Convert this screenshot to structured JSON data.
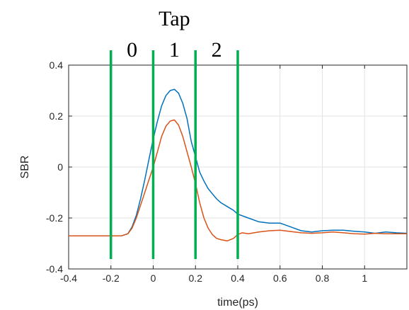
{
  "chart_data": {
    "type": "line",
    "xlabel": "time(ps)",
    "ylabel": "SBR",
    "xlim": [
      -0.4,
      1.2
    ],
    "ylim": [
      -0.4,
      0.4
    ],
    "xticks": [
      "-0.4",
      "-0.2",
      "0",
      "0.2",
      "0.4",
      "0.6",
      "0.8",
      "1"
    ],
    "xtick_values": [
      -0.4,
      -0.2,
      0,
      0.2,
      0.4,
      0.6,
      0.8,
      1.0
    ],
    "yticks": [
      "-0.4",
      "-0.2",
      "0",
      "0.2",
      "0.4"
    ],
    "ytick_values": [
      -0.4,
      -0.2,
      0,
      0.2,
      0.4
    ],
    "grid": true,
    "series": [
      {
        "color": "#0072BD",
        "x": [
          -0.4,
          -0.3,
          -0.2,
          -0.15,
          -0.12,
          -0.1,
          -0.08,
          -0.06,
          -0.04,
          -0.02,
          0.0,
          0.02,
          0.04,
          0.06,
          0.08,
          0.1,
          0.12,
          0.14,
          0.16,
          0.18,
          0.2,
          0.22,
          0.24,
          0.26,
          0.28,
          0.3,
          0.32,
          0.35,
          0.38,
          0.4,
          0.45,
          0.5,
          0.55,
          0.6,
          0.65,
          0.7,
          0.75,
          0.8,
          0.85,
          0.9,
          0.95,
          1.0,
          1.05,
          1.1,
          1.15,
          1.2
        ],
        "y": [
          -0.27,
          -0.27,
          -0.27,
          -0.27,
          -0.262,
          -0.235,
          -0.19,
          -0.125,
          -0.05,
          0.03,
          0.11,
          0.18,
          0.24,
          0.28,
          0.3,
          0.305,
          0.29,
          0.25,
          0.19,
          0.1,
          0.04,
          -0.02,
          -0.055,
          -0.085,
          -0.105,
          -0.125,
          -0.14,
          -0.155,
          -0.17,
          -0.185,
          -0.2,
          -0.215,
          -0.22,
          -0.22,
          -0.235,
          -0.25,
          -0.255,
          -0.25,
          -0.248,
          -0.248,
          -0.252,
          -0.255,
          -0.26,
          -0.255,
          -0.258,
          -0.26
        ]
      },
      {
        "color": "#D95319",
        "x": [
          -0.4,
          -0.3,
          -0.2,
          -0.15,
          -0.12,
          -0.1,
          -0.08,
          -0.06,
          -0.04,
          -0.02,
          0.0,
          0.02,
          0.04,
          0.06,
          0.08,
          0.1,
          0.12,
          0.14,
          0.16,
          0.18,
          0.2,
          0.22,
          0.24,
          0.26,
          0.28,
          0.3,
          0.32,
          0.35,
          0.38,
          0.4,
          0.42,
          0.45,
          0.5,
          0.55,
          0.6,
          0.65,
          0.7,
          0.75,
          0.8,
          0.85,
          0.9,
          0.95,
          1.0,
          1.05,
          1.1,
          1.15,
          1.2
        ],
        "y": [
          -0.27,
          -0.27,
          -0.27,
          -0.27,
          -0.262,
          -0.24,
          -0.2,
          -0.15,
          -0.1,
          -0.05,
          0.0,
          0.06,
          0.12,
          0.16,
          0.18,
          0.185,
          0.165,
          0.12,
          0.06,
          0.0,
          -0.065,
          -0.14,
          -0.2,
          -0.24,
          -0.265,
          -0.28,
          -0.285,
          -0.29,
          -0.28,
          -0.265,
          -0.258,
          -0.262,
          -0.255,
          -0.25,
          -0.248,
          -0.253,
          -0.258,
          -0.26,
          -0.258,
          -0.255,
          -0.258,
          -0.262,
          -0.263,
          -0.26,
          -0.262,
          -0.262,
          -0.262
        ]
      }
    ],
    "annotations": {
      "title_text": "Tap",
      "tap_labels": [
        {
          "text": "0",
          "x": -0.1
        },
        {
          "text": "1",
          "x": 0.1
        },
        {
          "text": "2",
          "x": 0.3
        }
      ],
      "tap_boundaries": [
        -0.2,
        0.0,
        0.2,
        0.4
      ],
      "boundary_color": "#00B050"
    }
  }
}
